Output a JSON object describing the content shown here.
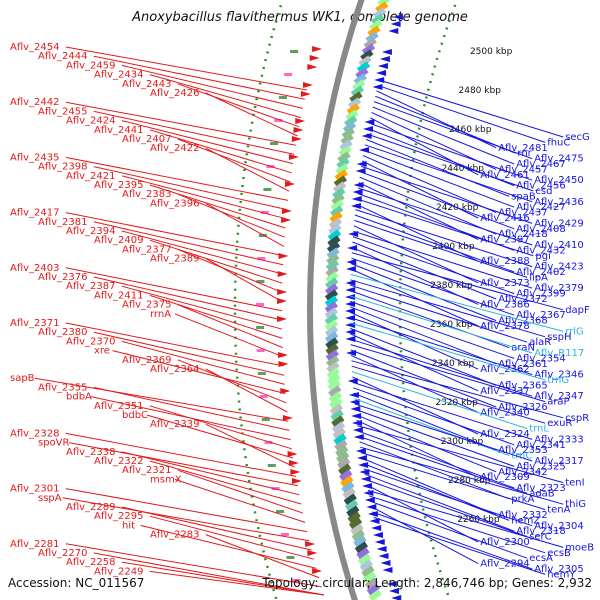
{
  "title": "Anoxybacillus flavithermus WK1, complete genome",
  "footer": {
    "accession": "Accession: NC_011567",
    "summary": "Topology: circular; Length: 2,846,746 bp; Genes: 2,932"
  },
  "scale_labels": [
    "2500 kbp",
    "2480 kbp",
    "2460 kbp",
    "2440 kbp",
    "2420 kbp",
    "2400 kbp",
    "2380 kbp",
    "2360 kbp",
    "2340 kbp",
    "2320 kbp",
    "2300 kbp",
    "2280 kbp",
    "2260 kbp"
  ],
  "left_labels": [
    "Aflv_2454",
    "Aflv_2444",
    "Aflv_2459",
    "Aflv_2434",
    "Aflv_2443",
    "Aflv_2426",
    "Aflv_2442",
    "Aflv_2455",
    "Aflv_2424",
    "Aflv_2441",
    "Aflv_2407",
    "Aflv_2422",
    "Aflv_2435",
    "Aflv_2398",
    "Aflv_2421",
    "Aflv_2395",
    "Aflv_2383",
    "Aflv_2396",
    "Aflv_2417",
    "Aflv_2381",
    "Aflv_2394",
    "Aflv_2409",
    "Aflv_2377",
    "Aflv_2389",
    "Aflv_2403",
    "Aflv_2376",
    "Aflv_2387",
    "Aflv_2411",
    "Aflv_2375",
    "rrnA",
    "Aflv_2371",
    "Aflv_2380",
    "Aflv_2370",
    "xre",
    "Aflv_2369",
    "Aflv_2364",
    "sapB",
    "Aflv_2355",
    "bdbA",
    "Aflv_2351",
    "bdbC",
    "Aflv_2339",
    "Aflv_2328",
    "spoVR",
    "Aflv_2338",
    "Aflv_2322",
    "Aflv_2321",
    "msmX",
    "Aflv_2301",
    "sspA",
    "Aflv_2289",
    "Aflv_2295",
    "hit",
    "Aflv_2283",
    "Aflv_2281",
    "Aflv_2270",
    "Aflv_2258",
    "Aflv_2249"
  ],
  "right_labels": [
    "secG",
    "fhuC",
    "Aflv_2481",
    "rnr",
    "Aflv_2475",
    "Aflv_2467",
    "Aflv_2457",
    "Aflv_2461",
    "Aflv_2450",
    "Aflv_2456",
    "csd",
    "spaB",
    "Aflv_2436",
    "Aflv_2427",
    "Aflv_2437",
    "Aflv_2416",
    "Aflv_2429",
    "Aflv_2408",
    "Aflv_2418",
    "Aflv_2397",
    "Aflv_2410",
    "Aflv_2432",
    "pgi",
    "Aflv_2388",
    "Aflv_2423",
    "Aflv_2402",
    "lipA",
    "Aflv_2373",
    "Aflv_2379",
    "Aflv_2399",
    "Aflv_2372",
    "Aflv_2386",
    "dapF",
    "Aflv_2367",
    "Aflv_2368",
    "Aflv_2378",
    "rrlG",
    "sspH",
    "alaR",
    "araN",
    "Aflv_R117",
    "Aflv_2354",
    "Aflv_2361",
    "Aflv_2362",
    "Aflv_2346",
    "trnG",
    "Aflv_2365",
    "Aflv_2337",
    "Aflv_2347",
    "araP",
    "Aflv_2326",
    "Aflv_2340",
    "cspR",
    "exuR",
    "trnL",
    "Aflv_2324",
    "Aflv_2333",
    "Aflv_2341",
    "Aflv_2353",
    "trnC",
    "Aflv_2317",
    "Aflv_2325",
    "Aflv_2342",
    "Aflv_2309",
    "tenI",
    "Aflv_2323",
    "adaB",
    "prkA",
    "thiG",
    "tenA",
    "Aflv_2332",
    "hemZ",
    "Aflv_2304",
    "Aflv_2318",
    "serC",
    "Aflv_2300",
    "moeB",
    "ecsB",
    "ecsA",
    "Aflv_2294",
    "Aflv_2305",
    "hemY"
  ],
  "colors": {
    "forward_cds": "#e31a1c",
    "reverse_cds": "#1515e0",
    "rna": "#30b4d8",
    "backbone": "#888888",
    "gc_track": "#2e8b2e",
    "text": "#111111"
  }
}
